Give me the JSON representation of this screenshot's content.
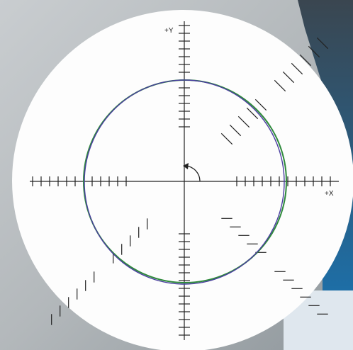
{
  "plot": {
    "y_label": "+Y",
    "x_label": "+X"
  }
}
